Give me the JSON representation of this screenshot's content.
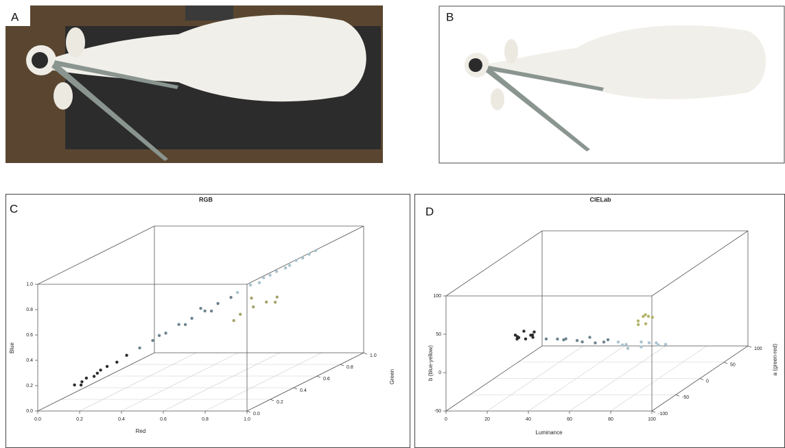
{
  "panel_labels": [
    "A",
    "B",
    "C",
    "D"
  ],
  "chart_data": [
    {
      "type": "scatter3d",
      "title": "RGB",
      "xlabel": "Red",
      "ylabel": "Green",
      "zlabel": "Blue",
      "xlim": [
        0,
        1
      ],
      "ylim": [
        0,
        1
      ],
      "zlim": [
        0,
        1
      ],
      "xticks": [
        {
          "value": 0,
          "label": "0.0"
        },
        0.2,
        0.4,
        0.6,
        0.8,
        {
          "value": 1,
          "label": "1.0"
        }
      ],
      "yticks": [
        {
          "value": 0,
          "label": "0.0"
        },
        0.2,
        0.4,
        0.6,
        0.8,
        {
          "value": 1,
          "label": "1.0"
        }
      ],
      "zticks": [
        {
          "value": 0,
          "label": "0.0"
        },
        0.2,
        0.4,
        0.6,
        0.8,
        {
          "value": 1,
          "label": "1.0"
        }
      ],
      "grid": true,
      "series": [
        {
          "color": "#2a2c2e",
          "x": [
            0.12,
            0.14,
            0.16,
            0.18,
            0.2,
            0.22,
            0.15,
            0.19,
            0.25,
            0.28
          ],
          "y": [
            0.1,
            0.12,
            0.13,
            0.16,
            0.18,
            0.2,
            0.11,
            0.17,
            0.23,
            0.26
          ],
          "z": [
            0.16,
            0.15,
            0.2,
            0.2,
            0.24,
            0.26,
            0.18,
            0.22,
            0.28,
            0.32
          ]
        },
        {
          "color": "#6e8390",
          "x": [
            0.32,
            0.36,
            0.4,
            0.44,
            0.48,
            0.52,
            0.56,
            0.6,
            0.38,
            0.46,
            0.54,
            0.5
          ],
          "y": [
            0.3,
            0.34,
            0.38,
            0.42,
            0.46,
            0.5,
            0.54,
            0.58,
            0.36,
            0.44,
            0.52,
            0.5
          ],
          "z": [
            0.36,
            0.4,
            0.44,
            0.49,
            0.52,
            0.56,
            0.6,
            0.63,
            0.43,
            0.48,
            0.55,
            0.58
          ]
        },
        {
          "color": "#a9c2cf",
          "x": [
            0.62,
            0.66,
            0.7,
            0.74,
            0.78,
            0.82,
            0.86,
            0.68,
            0.76,
            0.84,
            0.72,
            0.8
          ],
          "y": [
            0.6,
            0.64,
            0.68,
            0.72,
            0.76,
            0.8,
            0.84,
            0.68,
            0.76,
            0.82,
            0.7,
            0.78
          ],
          "z": [
            0.66,
            0.7,
            0.74,
            0.77,
            0.8,
            0.84,
            0.88,
            0.7,
            0.78,
            0.86,
            0.75,
            0.83
          ]
        },
        {
          "color": "#a5a36a",
          "x": [
            0.6,
            0.64,
            0.68,
            0.72,
            0.58,
            0.62,
            0.7
          ],
          "y": [
            0.66,
            0.7,
            0.74,
            0.76,
            0.64,
            0.72,
            0.78
          ],
          "z": [
            0.46,
            0.5,
            0.52,
            0.55,
            0.42,
            0.56,
            0.5
          ]
        }
      ]
    },
    {
      "type": "scatter3d",
      "title": "CIELab",
      "xlabel": "Luminance",
      "ylabel": "a (green-red)",
      "zlabel": "b (blue-yellow)",
      "xlim": [
        0,
        100
      ],
      "ylim": [
        -100,
        100
      ],
      "zlim": [
        -50,
        100
      ],
      "xticks": [
        0,
        20,
        40,
        60,
        80,
        100
      ],
      "yticks": [
        -100,
        -50,
        0,
        50,
        100
      ],
      "zticks": [
        -50,
        0,
        50,
        100
      ],
      "grid": true,
      "series": [
        {
          "color": "#2a2c2e",
          "x": [
            15,
            17,
            18,
            20,
            22,
            24,
            19,
            21,
            16,
            23
          ],
          "y": [
            -20,
            -25,
            -15,
            -20,
            -18,
            -22,
            -30,
            -10,
            -20,
            -15
          ],
          "z": [
            15,
            12,
            18,
            10,
            14,
            13,
            16,
            11,
            13,
            17
          ]
        },
        {
          "color": "#6e8390",
          "x": [
            30,
            35,
            40,
            45,
            50,
            55,
            60,
            38,
            48,
            58
          ],
          "y": [
            -20,
            -18,
            -22,
            -20,
            -15,
            -25,
            -20,
            -18,
            -22,
            -20
          ],
          "z": [
            10,
            9,
            11,
            8,
            10,
            7,
            9,
            8,
            7,
            6
          ]
        },
        {
          "color": "#a9c2cf",
          "x": [
            65,
            70,
            75,
            80,
            85,
            72,
            78,
            83,
            68,
            88
          ],
          "y": [
            -20,
            -25,
            -15,
            -20,
            -22,
            -30,
            -28,
            -18,
            -24,
            -20
          ],
          "z": [
            6,
            5,
            4,
            5,
            3,
            2,
            3,
            4,
            4,
            3
          ]
        },
        {
          "color": "#b3b36a",
          "x": [
            70,
            72,
            74,
            76,
            71,
            75,
            73
          ],
          "y": [
            0,
            2,
            -2,
            4,
            -4,
            0,
            3
          ],
          "z": [
            25,
            30,
            34,
            28,
            22,
            31,
            20
          ]
        }
      ]
    }
  ]
}
